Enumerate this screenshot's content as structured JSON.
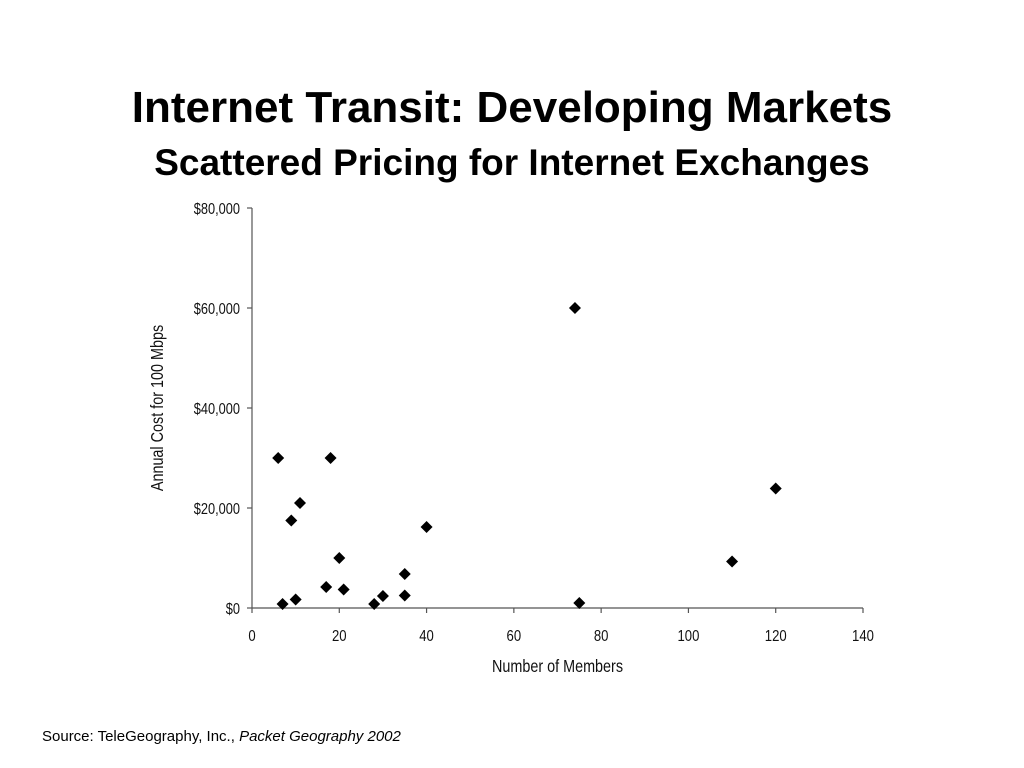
{
  "slide": {
    "title": "Internet Transit: Developing Markets",
    "subtitle": "Scattered Pricing for Internet Exchanges",
    "source_prefix": "Source: TeleGeography, Inc.,",
    "source_publication": "Packet Geography 2002"
  },
  "chart_data": {
    "type": "scatter",
    "title": "Internet Transit: Developing Markets",
    "subtitle": "Scattered Pricing for Internet Exchanges",
    "xlabel": "Number of Members",
    "ylabel": "Annual Cost for 100 Mbps",
    "xlim": [
      0,
      140
    ],
    "ylim": [
      0,
      80000
    ],
    "x_ticks": [
      0,
      20,
      40,
      60,
      80,
      100,
      120,
      140
    ],
    "x_tick_labels": [
      "0",
      "20",
      "40",
      "60",
      "80",
      "100",
      "120",
      "140"
    ],
    "y_ticks": [
      0,
      20000,
      40000,
      60000,
      80000
    ],
    "y_tick_labels": [
      "$0",
      "$20,000",
      "$40,000",
      "$60,000",
      "$80,000"
    ],
    "grid": false,
    "legend": "none",
    "marker": "diamond",
    "marker_color": "#000000",
    "points": [
      {
        "x": 6,
        "y": 30000
      },
      {
        "x": 7,
        "y": 800
      },
      {
        "x": 9,
        "y": 17500
      },
      {
        "x": 10,
        "y": 1700
      },
      {
        "x": 11,
        "y": 21000
      },
      {
        "x": 17,
        "y": 4200
      },
      {
        "x": 18,
        "y": 30000
      },
      {
        "x": 20,
        "y": 10000
      },
      {
        "x": 21,
        "y": 3700
      },
      {
        "x": 28,
        "y": 800
      },
      {
        "x": 30,
        "y": 2400
      },
      {
        "x": 35,
        "y": 2500
      },
      {
        "x": 35,
        "y": 6800
      },
      {
        "x": 40,
        "y": 16200
      },
      {
        "x": 74,
        "y": 60000
      },
      {
        "x": 75,
        "y": 1000
      },
      {
        "x": 110,
        "y": 9300
      },
      {
        "x": 120,
        "y": 23900
      }
    ]
  }
}
